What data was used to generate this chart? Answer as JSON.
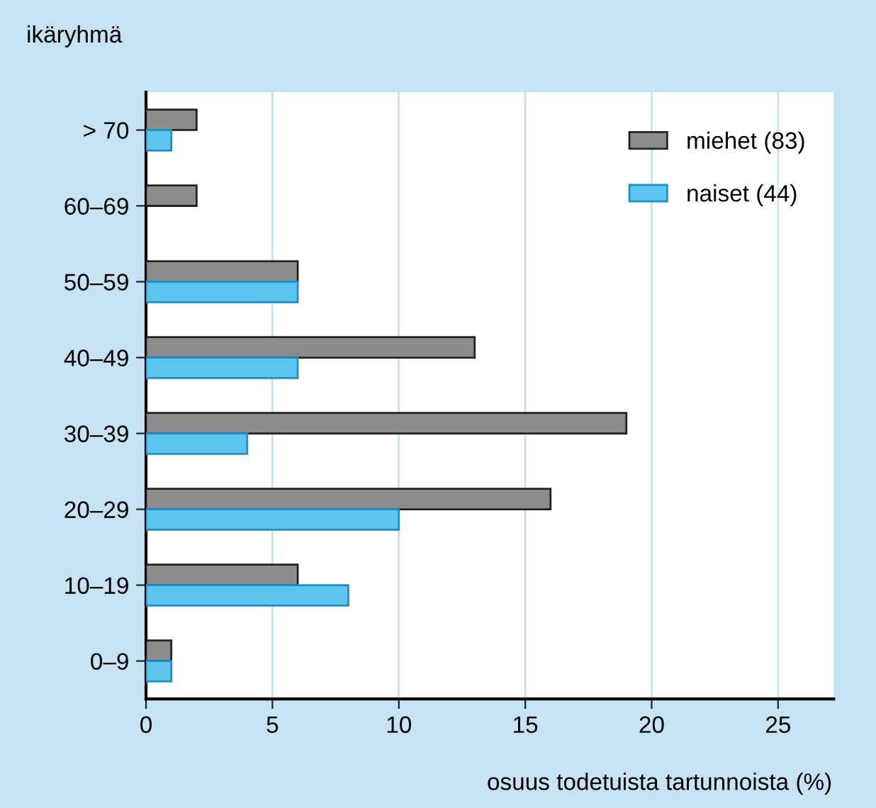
{
  "chart_data": {
    "type": "bar",
    "orientation": "horizontal",
    "ylabel": "ikäryhmä",
    "xlabel": "osuus todetuista tartunnoista (%)",
    "categories": [
      "> 70",
      "60–69",
      "50–59",
      "40–49",
      "30–39",
      "20–29",
      "10–19",
      "0–9"
    ],
    "series": [
      {
        "name": "miehet (83)",
        "color": "#8c8c8c",
        "values": [
          2,
          2,
          6,
          13,
          19,
          16,
          6,
          1
        ]
      },
      {
        "name": "naiset (44)",
        "color": "#5bc5ef",
        "values": [
          1,
          null,
          6,
          6,
          4,
          10,
          8,
          1
        ]
      }
    ],
    "xlim": [
      0,
      27.2
    ],
    "xticks": [
      0,
      5,
      10,
      15,
      20,
      25
    ],
    "grid": "x",
    "legend": "top right"
  }
}
